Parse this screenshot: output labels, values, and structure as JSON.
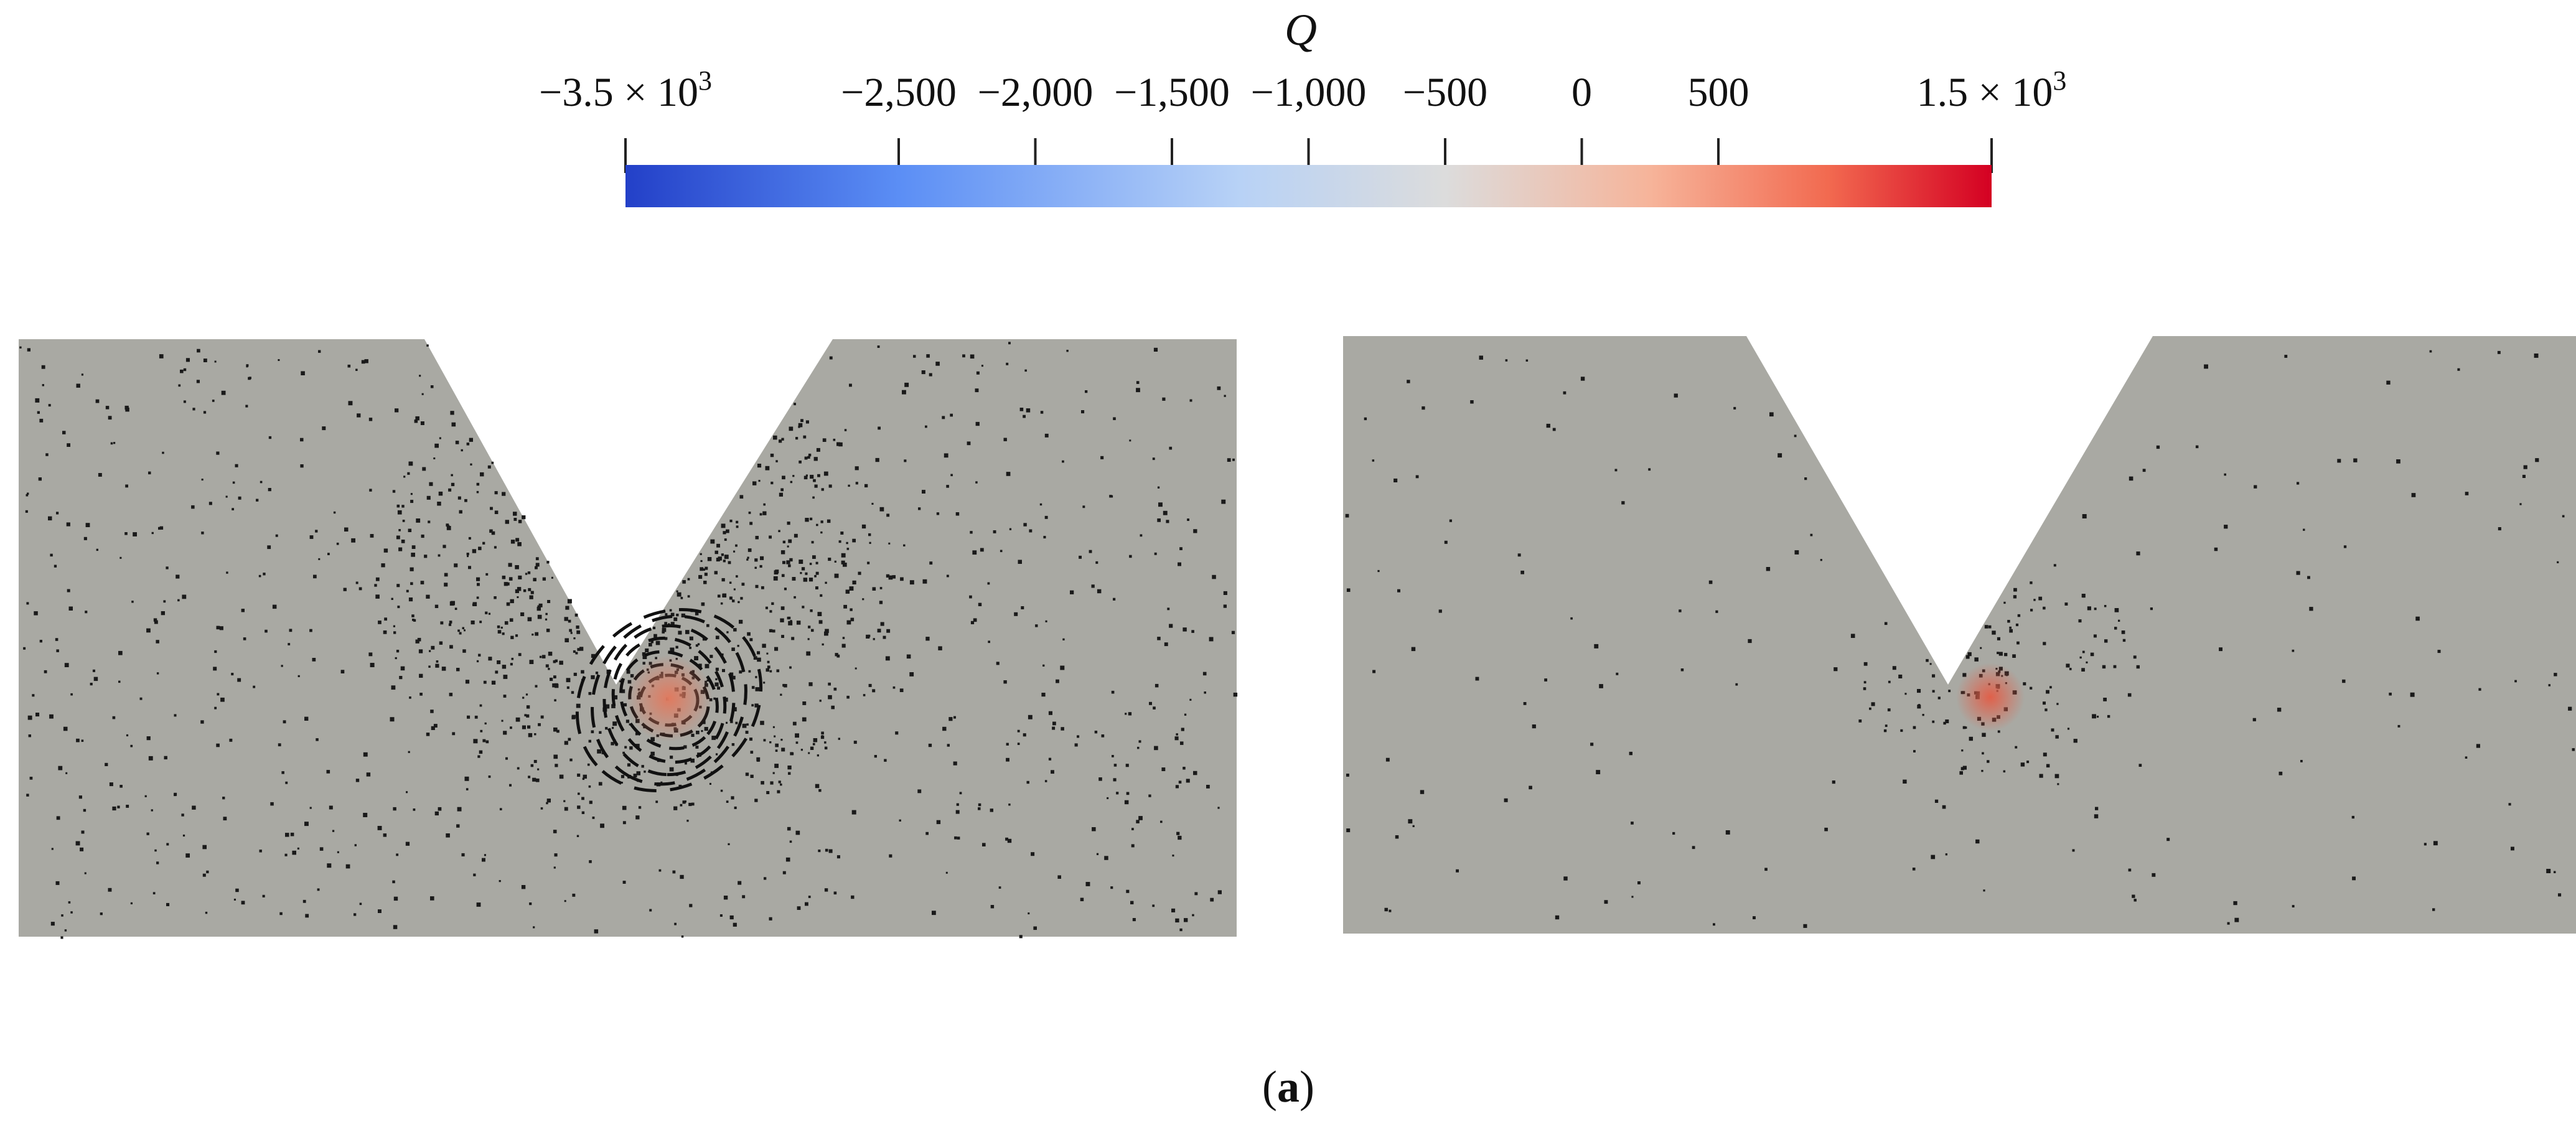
{
  "colorbar": {
    "title": "Q",
    "min": -3500,
    "max": 1500,
    "ticks": [
      {
        "value": -3500,
        "label": "−3.5 × 10",
        "exp": "3"
      },
      {
        "value": -2500,
        "label": "−2,500"
      },
      {
        "value": -2000,
        "label": "−2,000"
      },
      {
        "value": -1500,
        "label": "−1,500"
      },
      {
        "value": -1000,
        "label": "−1,000"
      },
      {
        "value": -500,
        "label": "−500"
      },
      {
        "value": 0,
        "label": "0"
      },
      {
        "value": 500,
        "label": "500"
      },
      {
        "value": 1500,
        "label": "1.5 × 10",
        "exp": "3"
      }
    ],
    "colors": {
      "low": "#2340c8",
      "mid": "#dcdcdc",
      "high": "#d40022"
    }
  },
  "panels": {
    "background_color": "#a9a9a3",
    "left": {
      "vortex_color": "#e07a5f",
      "dots": "dense"
    },
    "right": {
      "vortex_color": "#e0604a",
      "dots": "sparse"
    }
  },
  "caption": {
    "open": "(",
    "letter": "a",
    "close": ")"
  }
}
